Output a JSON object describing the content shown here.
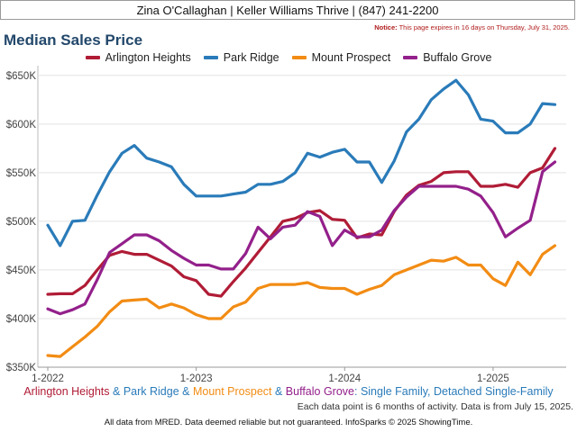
{
  "header": {
    "agent_line": "Zina O'Callaghan | Keller Williams Thrive | (847) 241-2200",
    "notice_label": "Notice:",
    "notice_text": " This page expires in 16 days on Thursday, July 31, 2025."
  },
  "chart_data": {
    "type": "line",
    "title": "Median Sales Price",
    "xlabel": "",
    "ylabel": "",
    "x_ticks": [
      "1-2022",
      "1-2023",
      "1-2024",
      "1-2025"
    ],
    "y_ticks": [
      "$350K",
      "$400K",
      "$450K",
      "$500K",
      "$550K",
      "$600K",
      "$650K"
    ],
    "ylim": [
      350000,
      660000
    ],
    "x_start": "2022-01",
    "x_months": [
      "2022-01",
      "2022-02",
      "2022-03",
      "2022-04",
      "2022-05",
      "2022-06",
      "2022-07",
      "2022-08",
      "2022-09",
      "2022-10",
      "2022-11",
      "2022-12",
      "2023-01",
      "2023-02",
      "2023-03",
      "2023-04",
      "2023-05",
      "2023-06",
      "2023-07",
      "2023-08",
      "2023-09",
      "2023-10",
      "2023-11",
      "2023-12",
      "2024-01",
      "2024-02",
      "2024-03",
      "2024-04",
      "2024-05",
      "2024-06",
      "2024-07",
      "2024-08",
      "2024-09",
      "2024-10",
      "2024-11",
      "2024-12",
      "2025-01",
      "2025-02",
      "2025-03",
      "2025-04",
      "2025-05",
      "2025-06"
    ],
    "grid": true,
    "legend_position": "top",
    "series": [
      {
        "name": "Arlington Heights",
        "color": "#b01c36",
        "values": [
          425000,
          425500,
          425500,
          434000,
          450000,
          465000,
          469000,
          466000,
          466000,
          460000,
          454000,
          443000,
          439000,
          425000,
          423000,
          438000,
          452000,
          468000,
          484000,
          500000,
          503000,
          509000,
          511000,
          502000,
          501000,
          483000,
          487000,
          486000,
          510000,
          527000,
          537000,
          541000,
          550000,
          551000,
          551000,
          536000,
          536000,
          538000,
          535000,
          550000,
          555000,
          575000
        ]
      },
      {
        "name": "Park Ridge",
        "color": "#2a7bb9",
        "values": [
          496000,
          475000,
          500000,
          501000,
          527000,
          551000,
          570000,
          578000,
          565000,
          561000,
          556000,
          538000,
          526000,
          526000,
          526000,
          528000,
          530000,
          538000,
          538000,
          541000,
          550000,
          570000,
          566000,
          571000,
          574000,
          561000,
          561000,
          540000,
          562000,
          592000,
          605000,
          625000,
          636000,
          645000,
          630000,
          605000,
          603000,
          591000,
          591000,
          600000,
          621000,
          620000
        ]
      },
      {
        "name": "Mount Prospect",
        "color": "#f28c14",
        "values": [
          362000,
          361000,
          371000,
          381000,
          392000,
          407000,
          418000,
          419000,
          420000,
          411000,
          415000,
          411000,
          404000,
          400000,
          400000,
          412000,
          417000,
          431000,
          435000,
          435000,
          435000,
          437000,
          432000,
          431000,
          431000,
          425000,
          430000,
          434000,
          445000,
          450000,
          455000,
          460000,
          459000,
          463000,
          455000,
          455000,
          441000,
          434000,
          458000,
          445000,
          466000,
          475000
        ]
      },
      {
        "name": "Buffalo Grove",
        "color": "#93208b",
        "values": [
          410000,
          405000,
          409000,
          415000,
          440000,
          468000,
          477000,
          486000,
          486000,
          480000,
          470000,
          462000,
          455000,
          455000,
          451000,
          451000,
          467000,
          494000,
          482000,
          494000,
          496000,
          510000,
          505000,
          475000,
          491000,
          484000,
          484000,
          491000,
          511000,
          525000,
          536000,
          536000,
          536000,
          536000,
          533000,
          526000,
          509000,
          484000,
          493000,
          501000,
          551000,
          561000
        ]
      }
    ],
    "subtitle_parts": [
      {
        "text": "Arlington Heights",
        "color": "#b01c36"
      },
      {
        "text": " & ",
        "color": "#2a7bb9"
      },
      {
        "text": "Park Ridge",
        "color": "#2a7bb9"
      },
      {
        "text": " & ",
        "color": "#2a7bb9"
      },
      {
        "text": "Mount Prospect",
        "color": "#f28c14"
      },
      {
        "text": " & ",
        "color": "#2a7bb9"
      },
      {
        "text": "Buffalo Grove",
        "color": "#93208b"
      },
      {
        "text": ": Single Family, Detached Single-Family",
        "color": "#2a7bb9"
      }
    ]
  },
  "footer": {
    "data_note": "Each data point is 6 months of activity. Data is from July 15, 2025.",
    "disclaimer": "All data from MRED. Data deemed reliable but not guaranteed. InfoSparks © 2025 ShowingTime."
  }
}
